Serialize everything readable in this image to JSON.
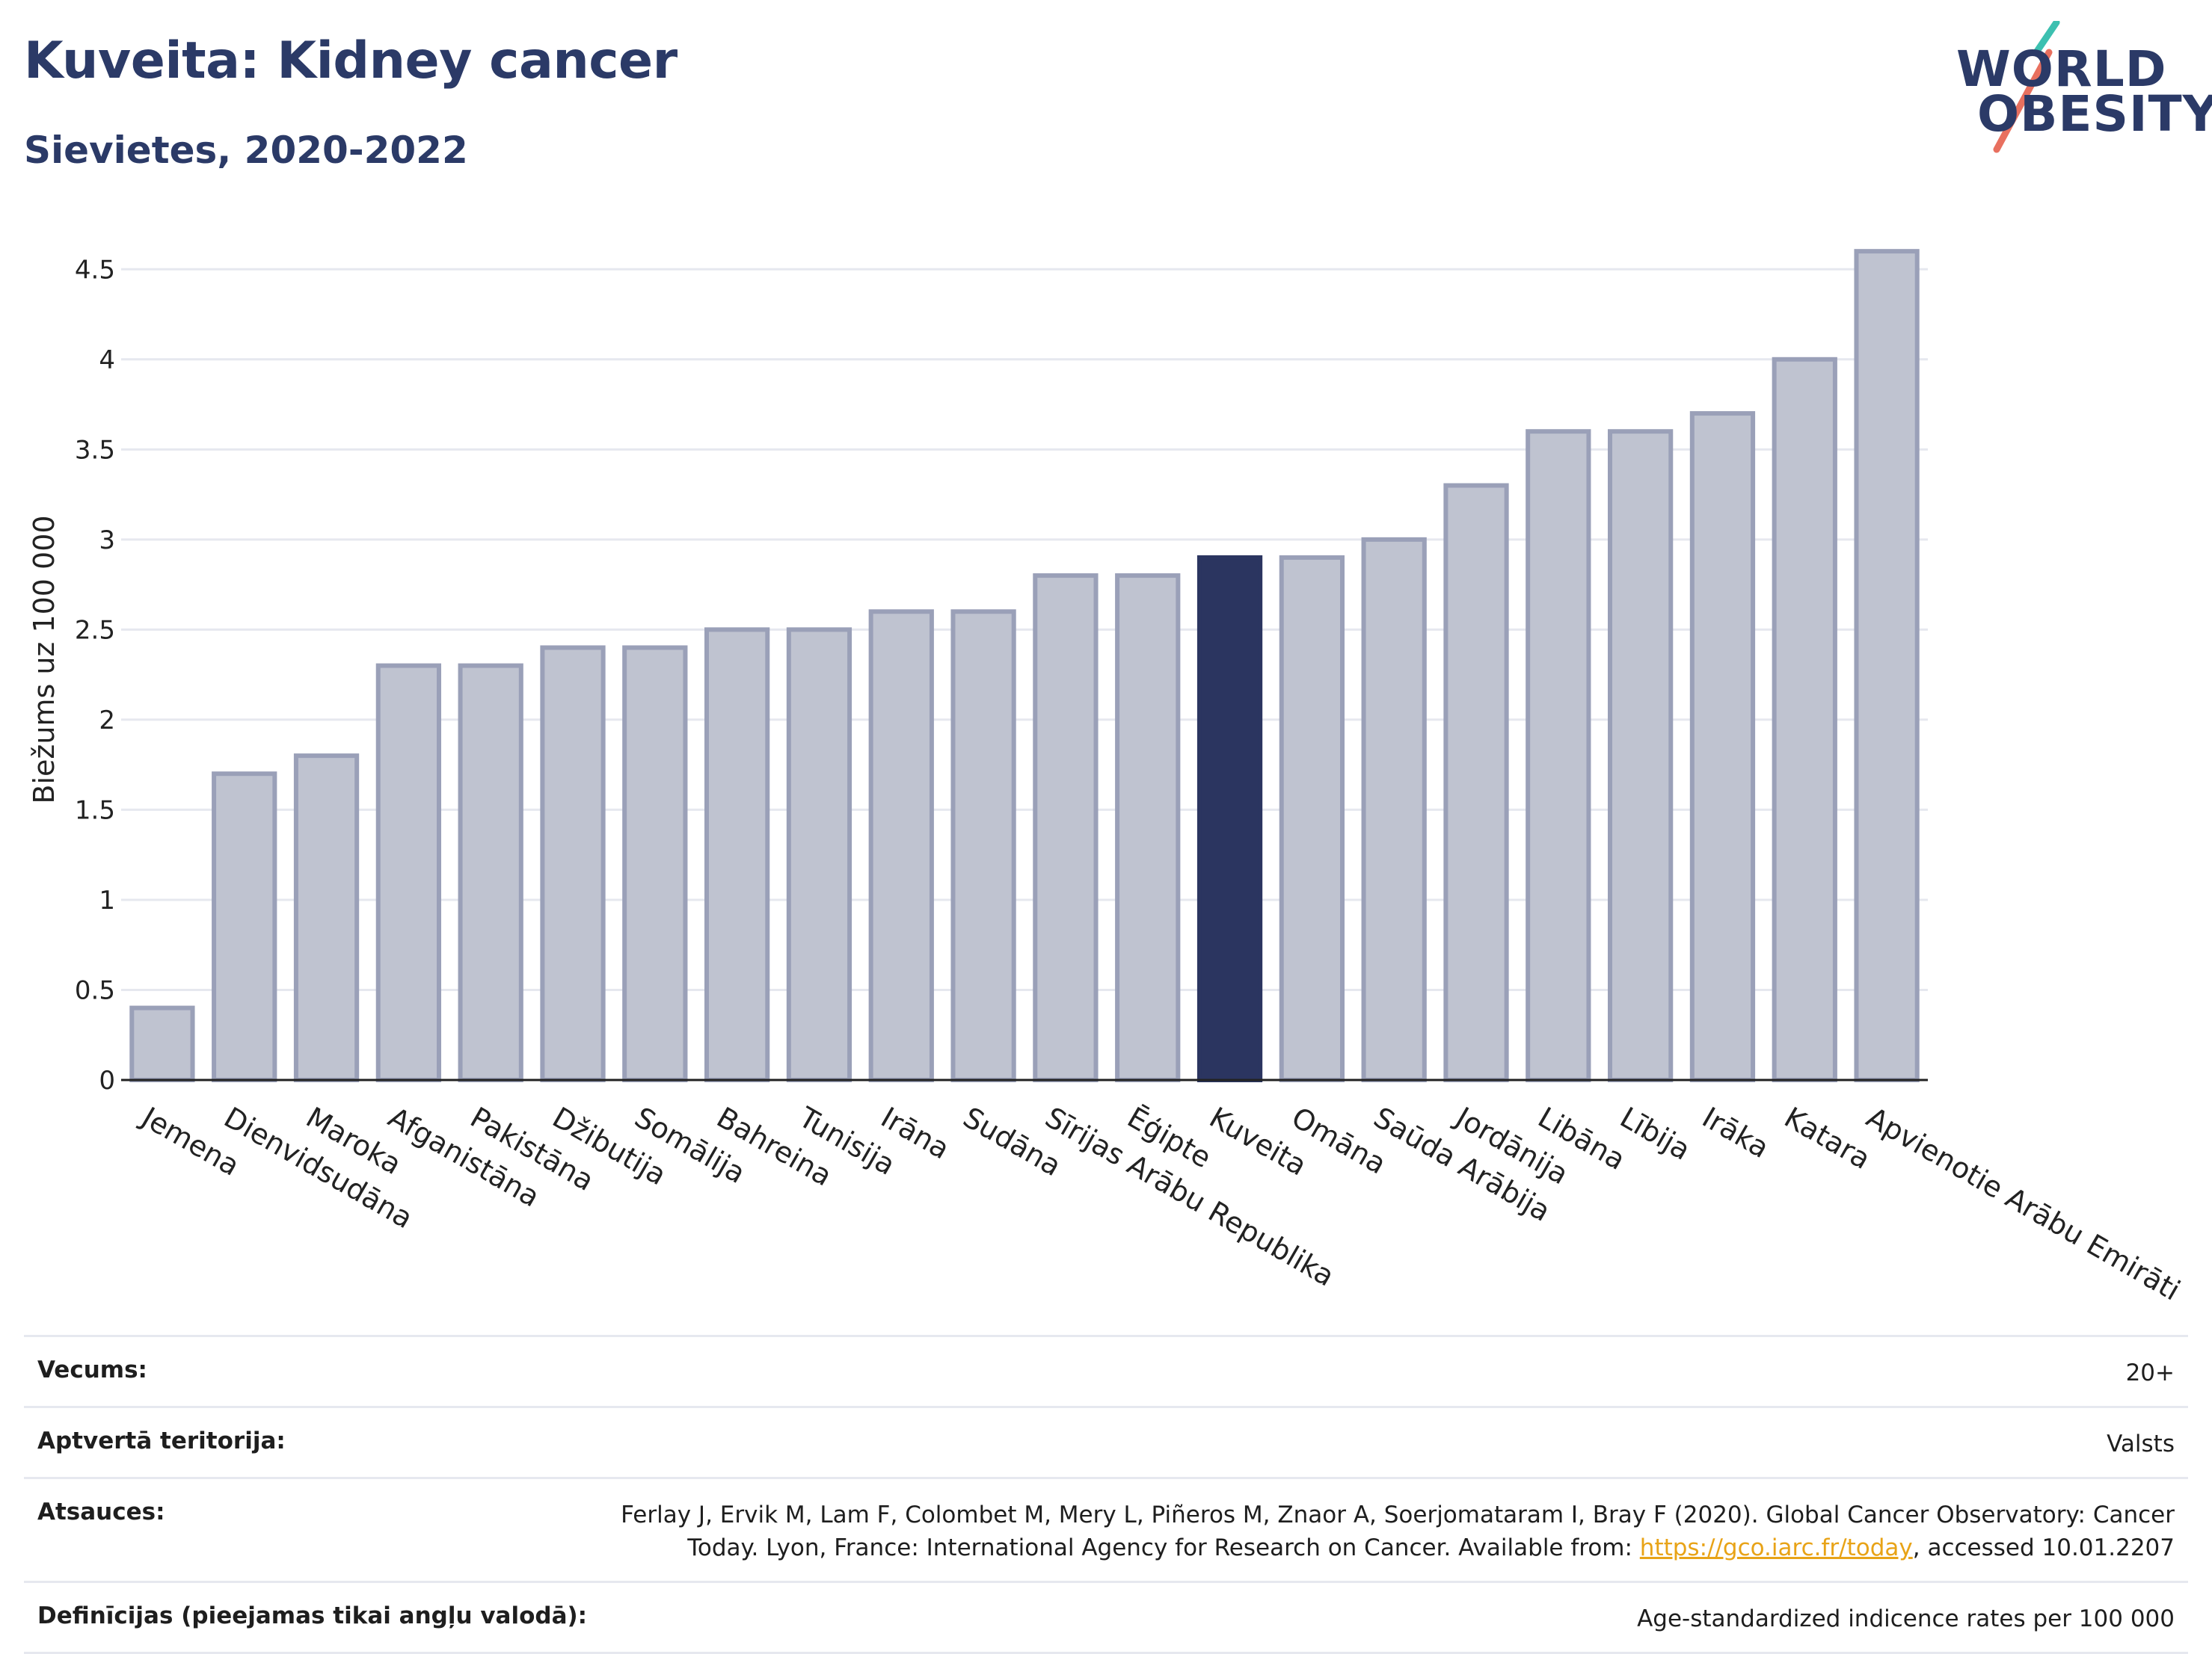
{
  "header": {
    "title": "Kuveita: Kidney cancer",
    "subtitle": "Sievietes, 2020-2022"
  },
  "logo": {
    "line1": "WORLD",
    "line2": "OBESITY"
  },
  "chart_data": {
    "type": "bar",
    "title": "Kuveita: Kidney cancer",
    "subtitle": "Sievietes, 2020-2022",
    "xlabel": "",
    "ylabel": "Biežums uz 100 000",
    "ylim": [
      0,
      4.75
    ],
    "yticks": [
      0,
      0.5,
      1,
      1.5,
      2,
      2.5,
      3,
      3.5,
      4,
      4.5
    ],
    "ytick_labels": [
      "0",
      "0.5",
      "1",
      "1.5",
      "2",
      "2.5",
      "3",
      "3.5",
      "4",
      "4.5"
    ],
    "grid": true,
    "highlight": "Kuveita",
    "colors": {
      "bar": "#bfc3d0",
      "bar_border": "#9aa0b8",
      "highlight": "#2b3560",
      "grid": "#e6e8ef"
    },
    "categories": [
      "Jemena",
      "Dienvidsudāna",
      "Maroka",
      "Afganistāna",
      "Pakistāna",
      "Džibutija",
      "Somālija",
      "Bahreina",
      "Tunisija",
      "Irāna",
      "Sudāna",
      "Sīrijas Arābu Republika",
      "Ēģipte",
      "Kuveita",
      "Omāna",
      "Saūda Arābija",
      "Jordānija",
      "Libāna",
      "Lībija",
      "Irāka",
      "Katara",
      "Apvienotie Arābu Emirāti"
    ],
    "values": [
      0.4,
      1.7,
      1.8,
      2.3,
      2.3,
      2.4,
      2.4,
      2.5,
      2.5,
      2.6,
      2.6,
      2.8,
      2.8,
      2.9,
      2.9,
      3.0,
      3.3,
      3.6,
      3.6,
      3.7,
      4.0,
      4.6
    ]
  },
  "footer": {
    "rows": [
      {
        "label": "Vecums:",
        "value": "20+"
      },
      {
        "label": "Aptvertā teritorija:",
        "value": "Valsts"
      },
      {
        "label": "Atsauces:",
        "value_pre": "Ferlay J, Ervik M, Lam F, Colombet M, Mery L, Piñeros M, Znaor A, Soerjomataram I, Bray F (2020). Global Cancer Observatory: Cancer Today. Lyon, France: International Agency for Research on Cancer. Available from: ",
        "link": "https://gco.iarc.fr/today",
        "value_post": ", accessed 10.01.2207"
      },
      {
        "label": "Definīcijas (pieejamas tikai angļu valodā):",
        "value": "Age-standardized indicence rates per 100 000"
      }
    ]
  }
}
